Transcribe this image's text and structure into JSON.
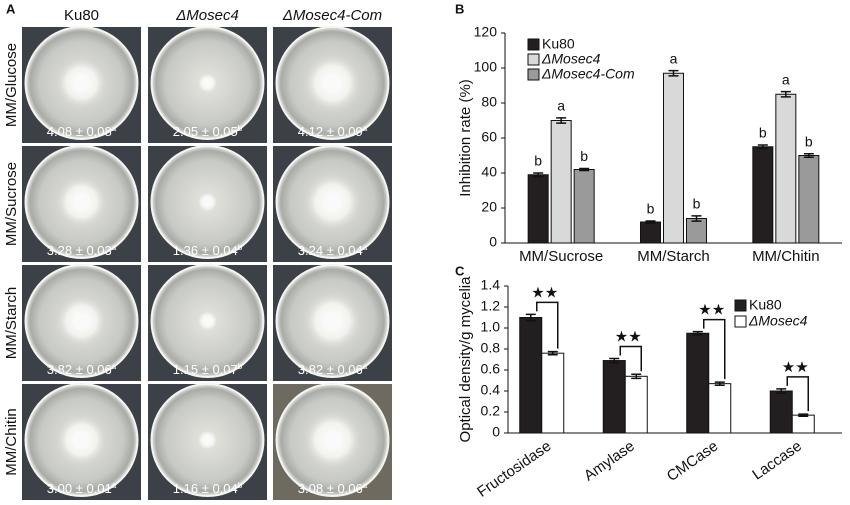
{
  "panel_a": {
    "label": "A",
    "columns": [
      "Ku80",
      "ΔMosec4",
      "ΔMosec4-Com"
    ],
    "rows": [
      {
        "label": "MM/Glucose",
        "cells": [
          {
            "text": "4.08 ± 0.08",
            "sup": "a"
          },
          {
            "text": "2.05 ± 0.05",
            "sup": "b"
          },
          {
            "text": "4.12 ± 0.09",
            "sup": "a"
          }
        ]
      },
      {
        "label": "MM/Sucrose",
        "cells": [
          {
            "text": "3.28 ± 0.03",
            "sup": "a"
          },
          {
            "text": "1.36 ± 0.04",
            "sup": "b"
          },
          {
            "text": "3.24 ± 0.04",
            "sup": "a"
          }
        ]
      },
      {
        "label": "MM/Starch",
        "cells": [
          {
            "text": "3.82 ± 0.06",
            "sup": "a"
          },
          {
            "text": "1.15 ± 0.07",
            "sup": "b"
          },
          {
            "text": "3.82 ± 0.06",
            "sup": "a"
          }
        ]
      },
      {
        "label": "MM/Chitin",
        "cells": [
          {
            "text": "3.00 ± 0.01",
            "sup": "a"
          },
          {
            "text": "1.16 ± 0.04",
            "sup": "b"
          },
          {
            "text": "3.08 ± 0.06",
            "sup": "a"
          }
        ]
      }
    ]
  },
  "chart_data": [
    {
      "type": "bar",
      "panel": "B",
      "y_label": "Inhibition rate (%)",
      "categories": [
        "MM/Sucrose",
        "MM/Starch",
        "MM/Chitin"
      ],
      "series": [
        {
          "name": "Ku80",
          "color": "#231f20",
          "values": [
            39,
            12,
            55
          ],
          "errors": [
            1,
            0.6,
            1
          ],
          "letters": [
            "b",
            "b",
            "b"
          ]
        },
        {
          "name": "ΔMosec4",
          "color": "#d9d9d9",
          "values": [
            70,
            97,
            85
          ],
          "errors": [
            1.5,
            1.5,
            1.5
          ],
          "letters": [
            "a",
            "a",
            "a"
          ]
        },
        {
          "name": "ΔMosec4-Com",
          "color": "#9a9a9a",
          "values": [
            42,
            14,
            50
          ],
          "errors": [
            0.6,
            1.5,
            1
          ],
          "letters": [
            "b",
            "b",
            "b"
          ]
        }
      ],
      "ylim": [
        0,
        120
      ],
      "yticks": [
        0,
        20,
        40,
        60,
        80,
        100,
        120
      ]
    },
    {
      "type": "bar",
      "panel": "C",
      "y_label": "Optical density/g mycelia",
      "categories": [
        "Fructosidase",
        "Amylase",
        "CMCase",
        "Laccase"
      ],
      "series": [
        {
          "name": "Ku80",
          "color": "#231f20",
          "values": [
            1.1,
            0.69,
            0.95,
            0.4
          ],
          "errors": [
            0.03,
            0.02,
            0.015,
            0.02
          ]
        },
        {
          "name": "ΔMosec4",
          "color": "#ffffff",
          "values": [
            0.76,
            0.54,
            0.47,
            0.17
          ],
          "errors": [
            0.015,
            0.02,
            0.015,
            0.01
          ]
        }
      ],
      "significance": [
        "★★",
        "★★",
        "★★",
        "★★"
      ],
      "ylim": [
        0,
        1.4
      ],
      "yticks": [
        0,
        0.2,
        0.4,
        0.6,
        0.8,
        {
          "value": 1,
          "label": "1.0"
        },
        1.2,
        1.4
      ]
    }
  ]
}
